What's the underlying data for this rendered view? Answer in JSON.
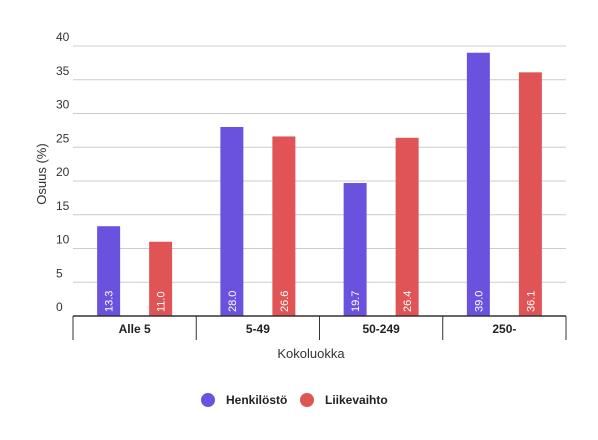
{
  "chart_data": {
    "type": "bar",
    "categories": [
      "Alle 5",
      "5-49",
      "50-249",
      "250-"
    ],
    "series": [
      {
        "name": "Henkilöstö",
        "values": [
          13.3,
          28.0,
          19.7,
          39.0
        ],
        "labels": [
          "13.3",
          "28.0",
          "19.7",
          "39.0"
        ],
        "color": "#6b52de"
      },
      {
        "name": "Liikevaihto",
        "values": [
          11.0,
          26.6,
          26.4,
          36.1
        ],
        "labels": [
          "11.0",
          "26.6",
          "26.4",
          "36.1"
        ],
        "color": "#e05455"
      }
    ],
    "xlabel": "Kokoluokka",
    "ylabel": "Osuus (%)",
    "ylim": [
      0,
      40
    ],
    "yticks": [
      0,
      5,
      10,
      15,
      20,
      25,
      30,
      35,
      40
    ],
    "ytick_labels": [
      "0",
      "5",
      "10",
      "15",
      "20",
      "25",
      "30",
      "35",
      "40"
    ],
    "grid": true,
    "legend_position": "bottom"
  }
}
